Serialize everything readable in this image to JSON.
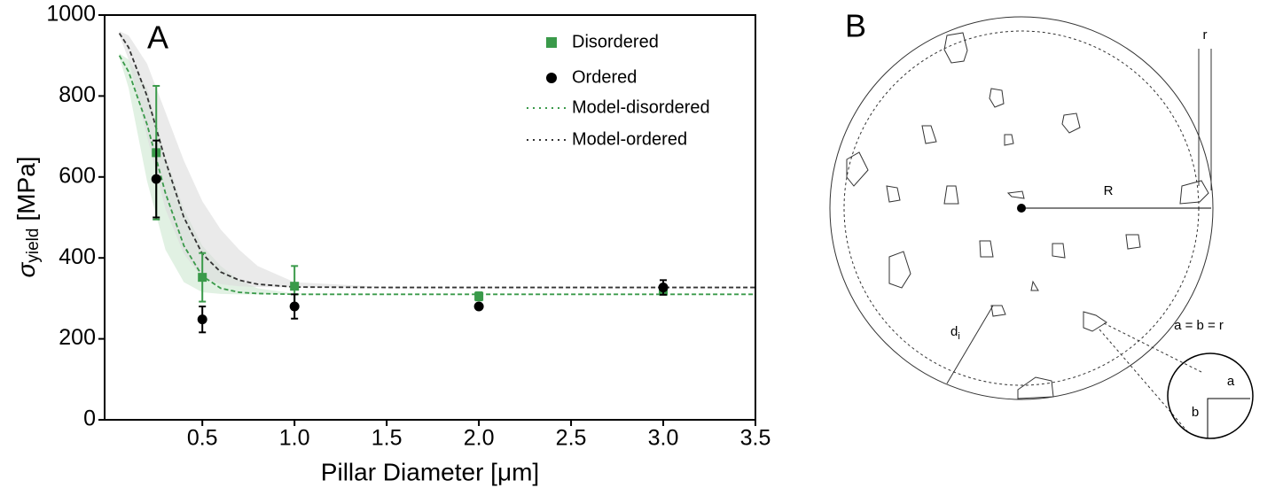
{
  "chart_data": {
    "type": "scatter-model",
    "panel_label": "A",
    "xlabel": "Pillar Diameter [μm]",
    "ylabel_symbol": "σ",
    "ylabel_subscript": "yield",
    "ylabel_unit": "[MPa]",
    "xlim": [
      -0.03,
      3.5
    ],
    "ylim": [
      0,
      1000
    ],
    "xticks": [
      0.5,
      {
        "value": 1,
        "label": "1.0"
      },
      1.5,
      {
        "value": 2,
        "label": "2.0"
      },
      2.5,
      {
        "value": 3,
        "label": "3.0"
      },
      3.5
    ],
    "yticks": [
      0,
      200,
      400,
      600,
      800,
      1000
    ],
    "legend": "upper right",
    "series": [
      {
        "name": "Disordered",
        "color": "#3a9a4a",
        "marker": "square",
        "x": [
          0.25,
          0.5,
          1,
          2,
          3
        ],
        "values": [
          660,
          352,
          330,
          305,
          318
        ],
        "errors": [
          165,
          60,
          50,
          10,
          8
        ]
      },
      {
        "name": "Ordered",
        "color": "#000000",
        "marker": "circle",
        "x": [
          0.25,
          0.5,
          1,
          2,
          3
        ],
        "values": [
          595,
          248,
          280,
          280,
          327
        ],
        "errors": [
          95,
          32,
          30,
          5,
          18
        ]
      },
      {
        "name": "Model-disordered",
        "color": "#3a9a4a",
        "band_color": "#cde8d0",
        "marker": "line",
        "x": [
          0.05,
          0.1,
          0.2,
          0.3,
          0.4,
          0.5,
          0.6,
          0.7,
          0.8,
          1.0,
          1.5,
          2,
          3,
          3.5
        ],
        "values": [
          900,
          860,
          730,
          560,
          430,
          355,
          325,
          315,
          312,
          310,
          310,
          310,
          310,
          310
        ],
        "band_lower": [
          895,
          820,
          590,
          420,
          340,
          315,
          311,
          310,
          310,
          310,
          310,
          310,
          310,
          310
        ],
        "band_upper": [
          905,
          890,
          820,
          650,
          520,
          430,
          380,
          345,
          325,
          312,
          310,
          310,
          310,
          310
        ]
      },
      {
        "name": "Model-ordered",
        "color": "#333333",
        "band_color": "#dcdcdc",
        "marker": "line",
        "x": [
          0.05,
          0.1,
          0.2,
          0.3,
          0.4,
          0.5,
          0.6,
          0.7,
          0.8,
          1.0,
          1.5,
          2,
          3,
          3.5
        ],
        "values": [
          955,
          920,
          800,
          640,
          500,
          410,
          365,
          345,
          335,
          328,
          327,
          327,
          327,
          327
        ],
        "band_lower": [
          950,
          890,
          700,
          520,
          410,
          350,
          335,
          330,
          328,
          327,
          327,
          327,
          327,
          327
        ],
        "band_upper": [
          960,
          950,
          880,
          760,
          640,
          540,
          470,
          420,
          380,
          340,
          328,
          327,
          327,
          327
        ]
      }
    ]
  },
  "diagram": {
    "panel_label": "B",
    "radius_small": "r",
    "radius_large": "R",
    "distance_symbol": "d",
    "distance_subscript": "i",
    "equation": "a = b = r",
    "side_a": "a",
    "side_b": "b"
  }
}
